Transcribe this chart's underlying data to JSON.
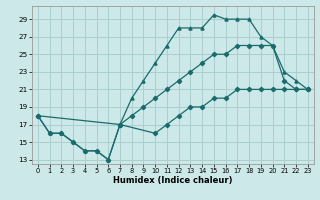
{
  "xlabel": "Humidex (Indice chaleur)",
  "bg_color": "#cce8e8",
  "line_color": "#1a6b6b",
  "grid_color": "#aacfcf",
  "xlim": [
    -0.5,
    23.5
  ],
  "ylim": [
    12.5,
    30.5
  ],
  "xticks": [
    0,
    1,
    2,
    3,
    4,
    5,
    6,
    7,
    8,
    9,
    10,
    11,
    12,
    13,
    14,
    15,
    16,
    17,
    18,
    19,
    20,
    21,
    22,
    23
  ],
  "yticks": [
    13,
    15,
    17,
    19,
    21,
    23,
    25,
    27,
    29
  ],
  "line1_x": [
    0,
    1,
    2,
    3,
    4,
    5,
    6,
    7,
    8,
    9,
    10,
    11,
    12,
    13,
    14,
    15,
    16,
    17,
    18,
    19,
    20,
    21,
    22,
    23
  ],
  "line1_y": [
    18,
    16,
    16,
    15,
    14,
    14,
    13,
    17,
    20,
    22,
    24,
    26,
    28,
    28,
    28,
    29.5,
    29,
    29,
    29,
    27,
    26,
    23,
    22,
    21
  ],
  "line2_x": [
    0,
    1,
    2,
    3,
    4,
    5,
    6,
    7,
    8,
    9,
    10,
    11,
    12,
    13,
    14,
    15,
    16,
    17,
    18,
    19,
    20,
    21,
    22,
    23
  ],
  "line2_y": [
    18,
    16,
    16,
    15,
    14,
    14,
    13,
    17,
    18,
    19,
    20,
    21,
    22,
    23,
    24,
    25,
    25,
    26,
    26,
    26,
    26,
    22,
    21,
    21
  ],
  "line3_x": [
    0,
    7,
    10,
    11,
    12,
    13,
    14,
    15,
    16,
    17,
    18,
    19,
    20,
    21,
    22,
    23
  ],
  "line3_y": [
    18,
    17,
    16,
    17,
    18,
    19,
    19,
    20,
    20,
    21,
    21,
    21,
    21,
    21,
    21,
    21
  ]
}
